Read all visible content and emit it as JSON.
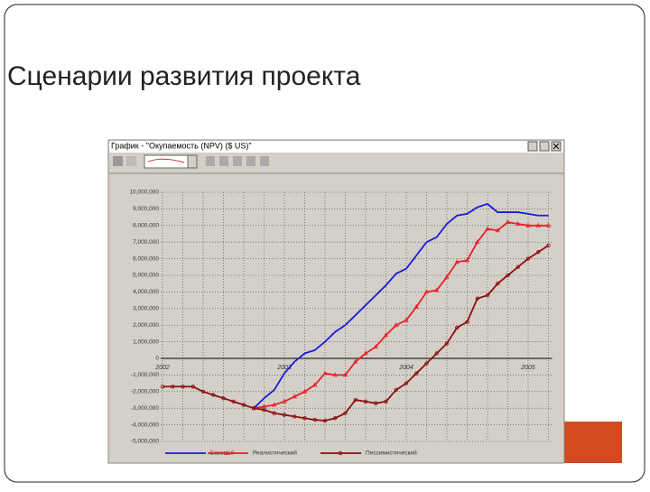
{
  "slide_title": "Сценарии развития проекта",
  "window": {
    "title": "График - \"Окупаемость (NPV) ($ US)\""
  },
  "chart_data": {
    "type": "line",
    "categories": [
      "2002",
      null,
      null,
      null,
      null,
      null,
      null,
      null,
      null,
      null,
      null,
      null,
      "2003",
      null,
      null,
      null,
      null,
      null,
      null,
      null,
      null,
      null,
      null,
      null,
      "2004",
      null,
      null,
      null,
      null,
      null,
      null,
      null,
      null,
      null,
      null,
      null,
      "2005",
      null,
      null
    ],
    "ylim": [
      -5000000,
      10000000
    ],
    "yticks": [
      {
        "value": 10000000,
        "label": "10,000,000"
      },
      {
        "value": 9000000,
        "label": "9,000,000"
      },
      {
        "value": 8000000,
        "label": "8,000,000"
      },
      {
        "value": 7000000,
        "label": "7,000,000"
      },
      {
        "value": 6000000,
        "label": "6,000,000"
      },
      {
        "value": 5000000,
        "label": "5,000,000"
      },
      {
        "value": 4000000,
        "label": "4,000,000"
      },
      {
        "value": 3000000,
        "label": "3,000,000"
      },
      {
        "value": 2000000,
        "label": "2,000,000"
      },
      {
        "value": 1000000,
        "label": "1,000,000"
      },
      0,
      {
        "value": -1000000,
        "label": "-1,000,000"
      },
      {
        "value": -2000000,
        "label": "-2,000,000"
      },
      {
        "value": -3000000,
        "label": "-3,000,000"
      },
      {
        "value": -4000000,
        "label": "-4,000,000"
      },
      {
        "value": -5000000,
        "label": "-5,000,000"
      }
    ],
    "grid": true,
    "legend": "bottom",
    "series": [
      {
        "name": "Базовый",
        "color": "#1a1adc",
        "marker": "none",
        "values": [
          null,
          null,
          null,
          null,
          null,
          null,
          null,
          null,
          null,
          -3000000,
          -2400000,
          -1900000,
          -900000,
          -200000,
          300000,
          500000,
          1000000,
          1600000,
          2000000,
          2600000,
          3200000,
          3800000,
          4400000,
          5100000,
          5400000,
          6200000,
          7000000,
          7300000,
          8100000,
          8600000,
          8700000,
          9100000,
          9300000,
          8800000,
          8800000,
          8800000,
          8700000,
          8600000,
          8600000
        ]
      },
      {
        "name": "Реалистический",
        "color": "#e8202a",
        "marker": "triangle",
        "values": [
          null,
          null,
          null,
          null,
          null,
          null,
          null,
          null,
          null,
          -3000000,
          -2900000,
          -2800000,
          -2600000,
          -2300000,
          -2000000,
          -1600000,
          -900000,
          -1000000,
          -1000000,
          -200000,
          300000,
          700000,
          1400000,
          2000000,
          2300000,
          3100000,
          4000000,
          4100000,
          4900000,
          5800000,
          5900000,
          7000000,
          7800000,
          7700000,
          8200000,
          8100000,
          8000000,
          8000000,
          8000000
        ]
      },
      {
        "name": "Пессимистический",
        "color": "#8b0f12",
        "marker": "circle",
        "values": [
          -1700000,
          -1700000,
          -1700000,
          -1700000,
          -2000000,
          -2200000,
          -2400000,
          -2600000,
          -2800000,
          -3000000,
          -3100000,
          -3300000,
          -3400000,
          -3500000,
          -3600000,
          -3700000,
          -3750000,
          -3600000,
          -3300000,
          -2500000,
          -2600000,
          -2700000,
          -2600000,
          -1900000,
          -1500000,
          -900000,
          -300000,
          300000,
          900000,
          1850000,
          2200000,
          3600000,
          3800000,
          4500000,
          5000000,
          5500000,
          6000000,
          6400000,
          6800000
        ]
      }
    ]
  }
}
